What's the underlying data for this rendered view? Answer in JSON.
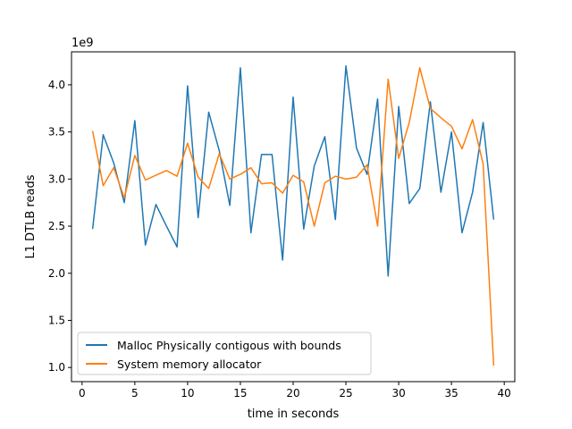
{
  "chart_data": {
    "type": "line",
    "xlabel": "time in seconds",
    "ylabel": "L1 DTLB reads",
    "y_offset_label": "1e9",
    "xlim": [
      -1,
      41
    ],
    "ylim": [
      0.85,
      4.35
    ],
    "x_ticks": [
      0,
      5,
      10,
      15,
      20,
      25,
      30,
      35,
      40
    ],
    "y_ticks": [
      1.0,
      1.5,
      2.0,
      2.5,
      3.0,
      3.5,
      4.0
    ],
    "y_tick_labels": [
      "1.0",
      "1.5",
      "2.0",
      "2.5",
      "3.0",
      "3.5",
      "4.0"
    ],
    "grid": false,
    "legend_position": "lower-left",
    "x": [
      1,
      2,
      3,
      4,
      5,
      6,
      7,
      8,
      9,
      10,
      11,
      12,
      13,
      14,
      15,
      16,
      17,
      18,
      19,
      20,
      21,
      22,
      23,
      24,
      25,
      26,
      27,
      28,
      29,
      30,
      31,
      32,
      33,
      34,
      35,
      36,
      37,
      38,
      39
    ],
    "series": [
      {
        "name": "Malloc Physically contigous with bounds",
        "color": "#1f77b4",
        "values": [
          2.47,
          3.47,
          3.17,
          2.75,
          3.62,
          2.3,
          2.73,
          2.5,
          2.28,
          3.99,
          2.59,
          3.71,
          3.3,
          2.72,
          4.18,
          2.43,
          3.26,
          3.26,
          2.14,
          3.87,
          2.47,
          3.14,
          3.45,
          2.57,
          4.2,
          3.33,
          3.05,
          3.85,
          1.97,
          3.77,
          2.74,
          2.9,
          3.82,
          2.86,
          3.5,
          2.43,
          2.86,
          3.6,
          2.57
        ]
      },
      {
        "name": "System memory allocator",
        "color": "#ff7f0e",
        "values": [
          3.51,
          2.93,
          3.12,
          2.8,
          3.25,
          2.99,
          3.04,
          3.09,
          3.03,
          3.38,
          3.02,
          2.9,
          3.27,
          3.0,
          3.05,
          3.12,
          2.95,
          2.96,
          2.85,
          3.04,
          2.97,
          2.5,
          2.96,
          3.03,
          3.0,
          3.02,
          3.15,
          2.5,
          4.06,
          3.22,
          3.6,
          4.18,
          3.75,
          3.65,
          3.56,
          3.32,
          3.63,
          3.16,
          1.02
        ]
      }
    ]
  }
}
